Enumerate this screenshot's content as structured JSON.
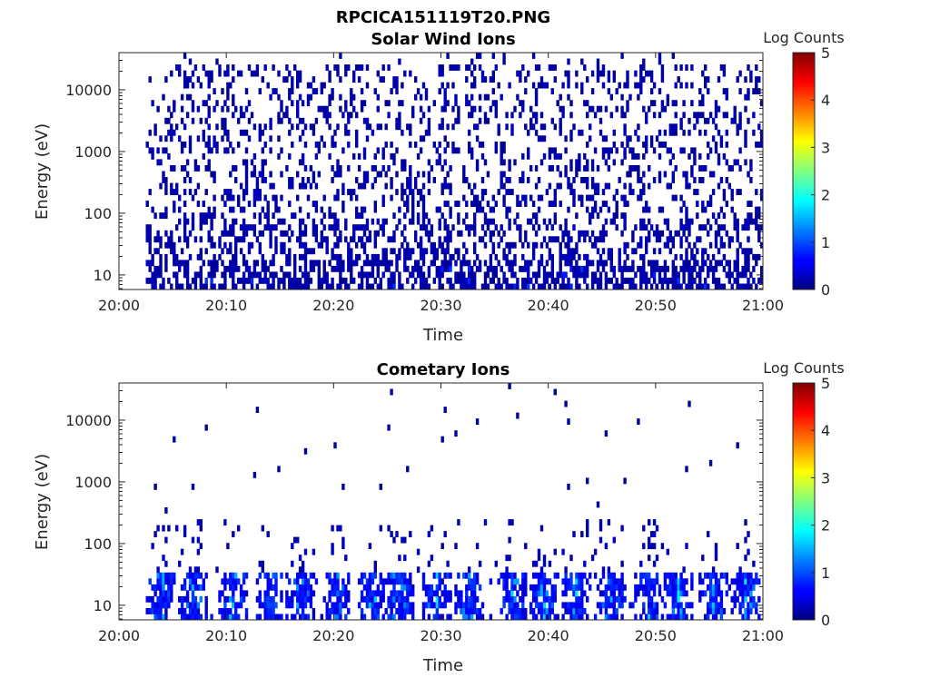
{
  "figure": {
    "title": "RPCICA151119T20.PNG"
  },
  "colors": {
    "colormap": "jet",
    "background": "#ffffff",
    "axes": "#262626"
  },
  "chart_data": [
    {
      "type": "heatmap",
      "title": "Solar Wind Ions",
      "xlabel": "Time",
      "ylabel": "Energy (eV)",
      "xlim": [
        "20:00",
        "21:00"
      ],
      "x_ticks": [
        "20:00",
        "20:10",
        "20:20",
        "20:30",
        "20:40",
        "20:50",
        "21:00"
      ],
      "y_scale": "log",
      "ylim": [
        5.8,
        40000
      ],
      "y_ticks": [
        10,
        100,
        1000,
        10000
      ],
      "y_tick_labels": [
        "10",
        "100",
        "1000",
        "10000"
      ],
      "colorbar": {
        "label": "Log Counts",
        "range": [
          0,
          5
        ],
        "ticks": [
          "0",
          "1",
          "2",
          "3",
          "4",
          "5"
        ]
      },
      "data_start": "20:02.5",
      "description_values": "Sparse single-count events (log counts ~0) across energies 6 eV – 40 keV, densest below 30 eV",
      "typical_log_counts": 0.1
    },
    {
      "type": "heatmap",
      "title": "Cometary Ions",
      "xlabel": "Time",
      "ylabel": "Energy (eV)",
      "xlim": [
        "20:00",
        "21:00"
      ],
      "x_ticks": [
        "20:00",
        "20:10",
        "20:20",
        "20:30",
        "20:40",
        "20:50",
        "21:00"
      ],
      "y_scale": "log",
      "ylim": [
        5.8,
        40000
      ],
      "y_ticks": [
        10,
        100,
        1000,
        10000
      ],
      "y_tick_labels": [
        "10",
        "100",
        "1000",
        "10000"
      ],
      "colorbar": {
        "label": "Log Counts",
        "range": [
          0,
          5
        ],
        "ticks": [
          "0",
          "1",
          "2",
          "3",
          "4",
          "5"
        ]
      },
      "bursts_minutes": [
        3.8,
        6.8,
        10.5,
        13.8,
        16.8,
        20.0,
        23.5,
        26.0,
        29.5,
        32.5,
        36.5,
        39.5,
        42.5,
        45.8,
        49.3,
        52.0,
        55.3,
        58.3
      ],
      "peak_log_counts": 1.8,
      "peak_energy_range_eV": [
        8,
        40
      ]
    }
  ]
}
